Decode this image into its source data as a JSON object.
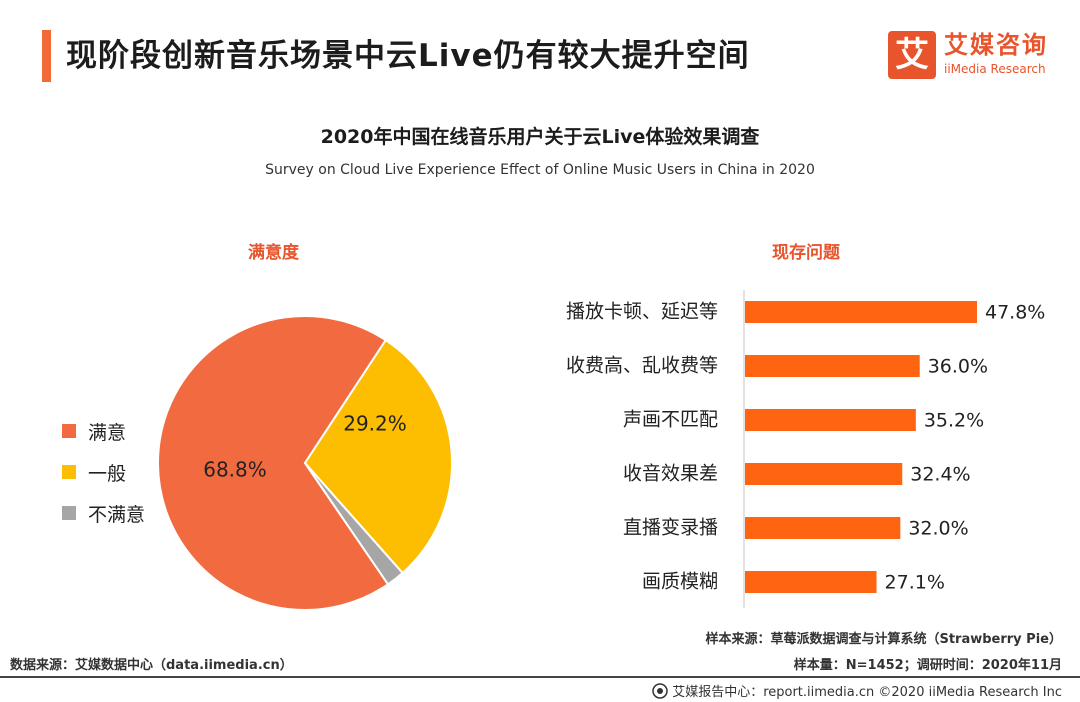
{
  "header": {
    "title": "现阶段创新音乐场景中云Live仍有较大提升空间",
    "logo_cn": "艾媒咨询",
    "logo_en": "iiMedia Research",
    "logo_mark": "艾"
  },
  "chart_data": [
    {
      "type": "pie",
      "title": "满意度",
      "categories": [
        "满意",
        "一般",
        "不满意"
      ],
      "values": [
        68.8,
        29.2,
        2.0
      ],
      "labels": [
        "68.8%",
        "29.2%",
        ""
      ],
      "colors": [
        "#f26a40",
        "#fdbd00",
        "#a6a6a6"
      ],
      "legend": "left"
    },
    {
      "type": "bar",
      "orientation": "horizontal",
      "title": "现存问题",
      "categories": [
        "播放卡顿、延迟等",
        "收费高、乱收费等",
        "声画不匹配",
        "收音效果差",
        "直播变录播",
        "画质模糊"
      ],
      "values": [
        47.8,
        36.0,
        35.2,
        32.4,
        32.0,
        27.1
      ],
      "value_labels": [
        "47.8%",
        "36.0%",
        "35.2%",
        "32.4%",
        "32.0%",
        "27.1%"
      ],
      "color": "#ff6410",
      "grid": false
    }
  ],
  "chart_title": "2020年中国在线音乐用户关于云Live体验效果调查",
  "chart_subtitle": "Survey on Cloud Live Experience Effect of Online Music Users  in China in 2020",
  "footer": {
    "source_left": "数据来源：艾媒数据中心（data.iimedia.cn）",
    "sample_source": "样本来源：草莓派数据调查与计算系统（Strawberry Pie）",
    "sample_info": "样本量：N=1452；调研时间：2020年11月",
    "credit": "艾媒报告中心：report.iimedia.cn ©2020  iiMedia Research  Inc"
  }
}
